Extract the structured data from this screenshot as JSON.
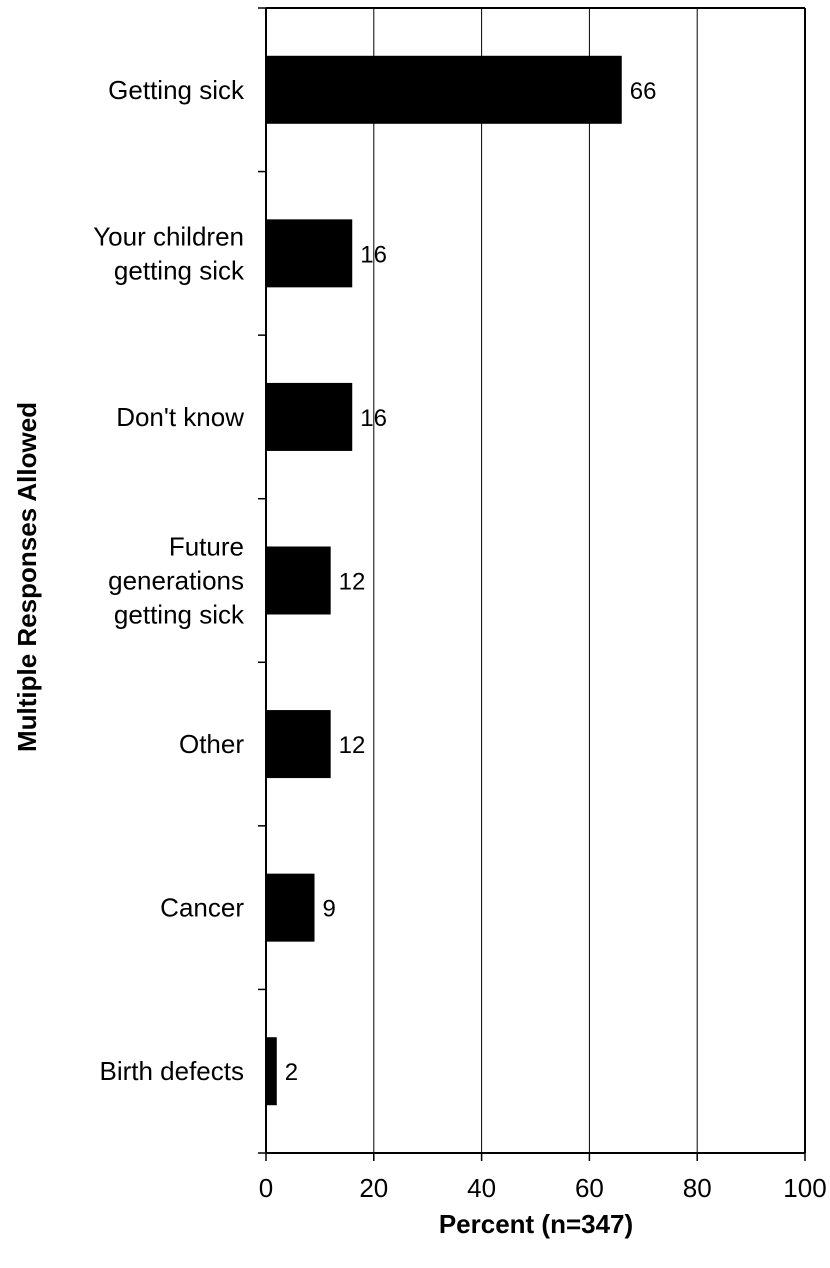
{
  "chart_data": {
    "type": "bar",
    "orientation": "horizontal",
    "categories": [
      "Getting sick",
      "Your children getting sick",
      "Don't know",
      "Future generations getting sick",
      "Other",
      "Cancer",
      "Birth defects"
    ],
    "category_lines": [
      [
        "Getting sick"
      ],
      [
        "Your children",
        "getting sick"
      ],
      [
        "Don't know"
      ],
      [
        "Future",
        "generations",
        "getting sick"
      ],
      [
        "Other"
      ],
      [
        "Cancer"
      ],
      [
        "Birth defects"
      ]
    ],
    "values": [
      66,
      16,
      16,
      12,
      12,
      9,
      2
    ],
    "value_labels": [
      "66",
      "16",
      "16",
      "12",
      "12",
      "9",
      "2"
    ],
    "xlabel": "Percent (n=347)",
    "ylabel": "Multiple Responses Allowed",
    "xlim": [
      0,
      100
    ],
    "xticks": [
      0,
      20,
      40,
      60,
      80,
      100
    ],
    "xtick_labels": [
      "0",
      "20",
      "40",
      "60",
      "80",
      "100"
    ],
    "grid": "vertical",
    "legend": "none",
    "bar_color": "#000000",
    "grid_color": "#000000"
  }
}
